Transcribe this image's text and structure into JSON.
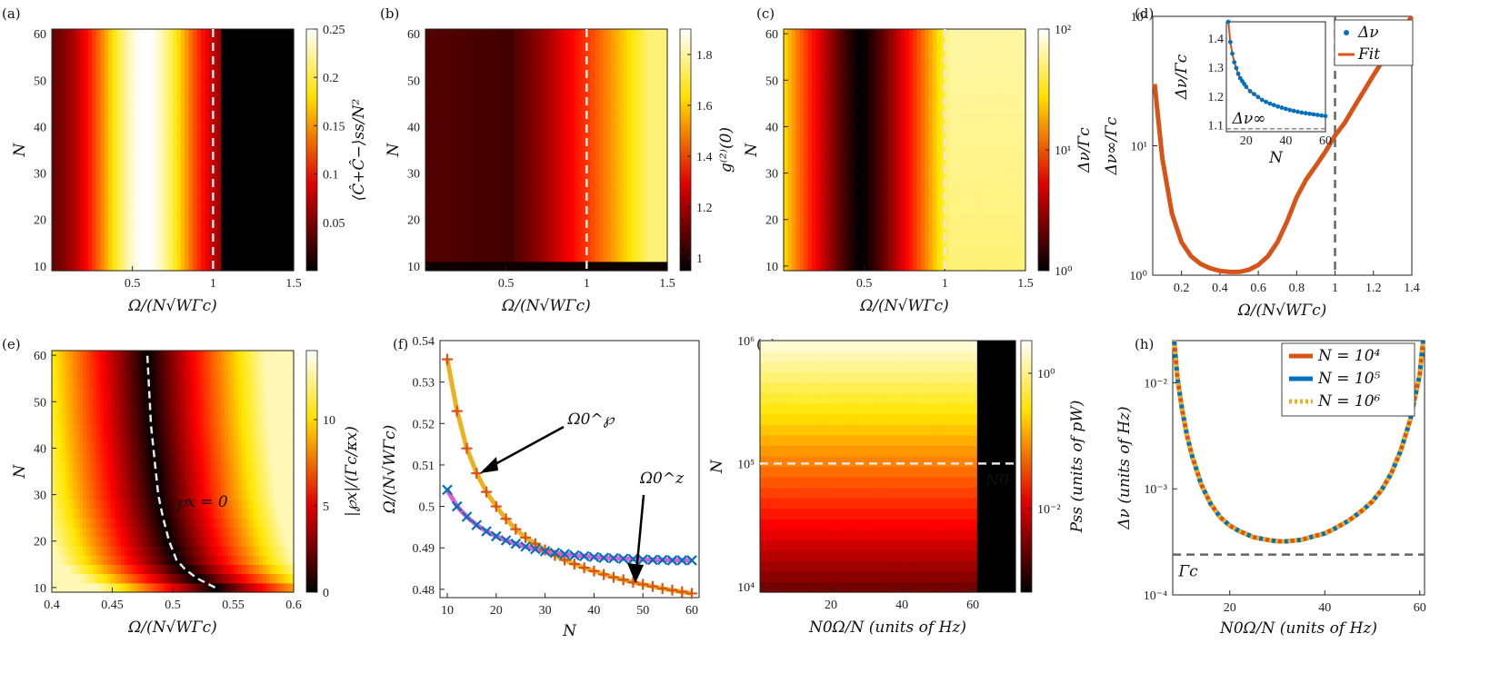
{
  "panel_labels": [
    "(a)",
    "(b)",
    "(c)",
    "(d)",
    "(e)",
    "(f)",
    "(g)",
    "(h)"
  ],
  "colors": {
    "orange": "#d95319",
    "blue": "#0072bd",
    "yellow": "#edb120",
    "magenta": "#e060d0",
    "dash_gray": "#666666",
    "dash_white": "#e8e8e8"
  },
  "chart_data": [
    {
      "id": "a",
      "type": "heatmap",
      "colormap": "hot",
      "xlabel": "Ω/(N√WΓc)",
      "ylabel": "N",
      "colorbar_label": "⟨Ĉ+Ĉ−⟩ss/N²",
      "xlim": [
        0,
        1.5
      ],
      "ylim": [
        9,
        61
      ],
      "xticks": [
        "0.5",
        "1",
        "1.5"
      ],
      "yticks": [
        "10",
        "20",
        "30",
        "40",
        "50",
        "60"
      ],
      "cbar_ticks": [
        "0.05",
        "0.1",
        "0.15",
        "0.2",
        "0.25"
      ],
      "cbar_range": [
        0,
        0.25
      ],
      "dashed_x": 1.0
    },
    {
      "id": "b",
      "type": "heatmap",
      "colormap": "hot",
      "xlabel": "Ω/(N√WΓc)",
      "ylabel": "N",
      "colorbar_label": "g⁽²⁾(0)",
      "xlim": [
        0,
        1.5
      ],
      "ylim": [
        9,
        61
      ],
      "xticks": [
        "0.5",
        "1",
        "1.5"
      ],
      "yticks": [
        "10",
        "20",
        "30",
        "40",
        "50",
        "60"
      ],
      "cbar_ticks": [
        "1",
        "1.2",
        "1.4",
        "1.6",
        "1.8"
      ],
      "cbar_range": [
        0.95,
        1.9
      ],
      "dashed_x": 1.0
    },
    {
      "id": "c",
      "type": "heatmap",
      "colormap": "hot",
      "cbar_scale": "log",
      "xlabel": "Ω/(N√WΓc)",
      "ylabel": "N",
      "colorbar_label": "Δν/Γc",
      "xlim": [
        0,
        1.5
      ],
      "ylim": [
        9,
        61
      ],
      "xticks": [
        "0.5",
        "1",
        "1.5"
      ],
      "yticks": [
        "10",
        "20",
        "30",
        "40",
        "50",
        "60"
      ],
      "cbar_ticks": [
        "10⁰",
        "10¹",
        "10²"
      ],
      "dashed_x": 1.0
    },
    {
      "id": "d",
      "type": "line",
      "yscale": "log",
      "xlabel": "Ω/(N√WΓc)",
      "ylabel": "Δν∞/Γc",
      "xlim": [
        0.05,
        1.4
      ],
      "ylim": [
        1,
        100
      ],
      "xticks": [
        "0.2",
        "0.4",
        "0.6",
        "0.8",
        "1",
        "1.2",
        "1.4"
      ],
      "yticks": [
        "10⁰",
        "10¹",
        "10²"
      ],
      "dashed_x": 1.0,
      "x": [
        0.06,
        0.1,
        0.15,
        0.2,
        0.25,
        0.3,
        0.35,
        0.4,
        0.45,
        0.5,
        0.55,
        0.6,
        0.65,
        0.7,
        0.75,
        0.8,
        0.85,
        0.9,
        0.95,
        1.0,
        1.05,
        1.1,
        1.2,
        1.3,
        1.4
      ],
      "y": [
        30,
        8,
        3,
        1.8,
        1.4,
        1.22,
        1.13,
        1.08,
        1.06,
        1.06,
        1.1,
        1.2,
        1.4,
        1.8,
        2.6,
        4,
        5.5,
        7,
        9,
        12,
        15,
        20,
        35,
        60,
        100
      ],
      "inset": {
        "xlabel": "N",
        "ylabel": "Δν/Γc",
        "xlim": [
          10,
          60
        ],
        "ylim": [
          1.08,
          1.46
        ],
        "xticks": [
          "20",
          "40",
          "60"
        ],
        "yticks": [
          "1.1",
          "1.2",
          "1.3",
          "1.4"
        ],
        "asymptote": 1.09,
        "asymptote_label": "Δν∞",
        "legend": [
          "Δν",
          "Fit"
        ],
        "N": [
          11,
          12,
          13,
          14,
          15,
          16,
          17,
          18,
          19,
          20,
          22,
          24,
          26,
          28,
          30,
          32,
          34,
          36,
          38,
          40,
          42,
          44,
          46,
          48,
          50,
          52,
          54,
          56,
          58,
          60
        ],
        "values": [
          1.46,
          1.39,
          1.35,
          1.32,
          1.3,
          1.28,
          1.265,
          1.255,
          1.245,
          1.235,
          1.22,
          1.21,
          1.2,
          1.19,
          1.183,
          1.177,
          1.172,
          1.167,
          1.163,
          1.159,
          1.155,
          1.152,
          1.149,
          1.146,
          1.144,
          1.142,
          1.14,
          1.138,
          1.136,
          1.134
        ]
      }
    },
    {
      "id": "e",
      "type": "heatmap",
      "colormap": "hot",
      "xlabel": "Ω/(N√WΓc)",
      "ylabel": "N",
      "colorbar_label": "|℘x|/(Γc/κx)",
      "xlim": [
        0.4,
        0.6
      ],
      "ylim": [
        9,
        61
      ],
      "xticks": [
        "0.4",
        "0.45",
        "0.5",
        "0.55",
        "0.6"
      ],
      "yticks": [
        "10",
        "20",
        "30",
        "40",
        "50",
        "60"
      ],
      "cbar_ticks": [
        "0",
        "5",
        "10"
      ],
      "cbar_range": [
        0,
        14
      ],
      "annotation": "℘x = 0",
      "zero_curve_N": [
        10,
        12,
        14,
        16,
        20,
        25,
        30,
        35,
        40,
        45,
        50,
        55,
        60
      ],
      "zero_curve_x": [
        0.535,
        0.52,
        0.51,
        0.503,
        0.497,
        0.492,
        0.488,
        0.486,
        0.484,
        0.482,
        0.481,
        0.48,
        0.479
      ]
    },
    {
      "id": "f",
      "type": "line",
      "xlabel": "N",
      "ylabel": "Ω/(N√WΓc)",
      "xlim": [
        10,
        60
      ],
      "ylim": [
        0.478,
        0.54
      ],
      "xticks": [
        "10",
        "20",
        "30",
        "40",
        "50",
        "60"
      ],
      "yticks": [
        "0.48",
        "0.49",
        "0.5",
        "0.51",
        "0.52",
        "0.53",
        "0.54"
      ],
      "annotations": [
        "Ω0^℘",
        "Ω0^z"
      ],
      "series": [
        {
          "name": "Ω0^℘",
          "N": [
            10,
            12,
            14,
            16,
            18,
            20,
            22,
            24,
            26,
            28,
            30,
            32,
            34,
            36,
            38,
            40,
            42,
            44,
            46,
            48,
            50,
            52,
            54,
            56,
            58,
            60
          ],
          "values": [
            0.5355,
            0.523,
            0.514,
            0.508,
            0.5035,
            0.5,
            0.497,
            0.4945,
            0.4925,
            0.491,
            0.4895,
            0.4882,
            0.4871,
            0.4861,
            0.4852,
            0.4844,
            0.4836,
            0.4829,
            0.4823,
            0.4817,
            0.4812,
            0.4807,
            0.4802,
            0.4798,
            0.4794,
            0.479
          ]
        },
        {
          "name": "Ω0^z",
          "N": [
            10,
            12,
            14,
            16,
            18,
            20,
            22,
            24,
            26,
            28,
            30,
            32,
            34,
            36,
            38,
            40,
            42,
            44,
            46,
            48,
            50,
            52,
            54,
            56,
            58,
            60
          ],
          "values": [
            0.504,
            0.5,
            0.4975,
            0.4955,
            0.494,
            0.4928,
            0.4918,
            0.491,
            0.4903,
            0.4897,
            0.4892,
            0.4888,
            0.4885,
            0.4882,
            0.488,
            0.4878,
            0.4876,
            0.4875,
            0.4874,
            0.4873,
            0.4872,
            0.4871,
            0.4871,
            0.487,
            0.487,
            0.487
          ]
        }
      ]
    },
    {
      "id": "g",
      "type": "heatmap",
      "colormap": "hot",
      "cbar_scale": "log",
      "xlabel": "N0Ω/N (units of Hz)",
      "ylabel": "N",
      "colorbar_label": "Pss (units of pW)",
      "xlim": [
        0,
        72
      ],
      "ylim": [
        9000,
        1000000
      ],
      "yscale": "log",
      "xticks": [
        "20",
        "40",
        "60"
      ],
      "yticks": [
        "10⁴",
        "10⁵",
        "10⁶"
      ],
      "cbar_ticks": [
        "10⁰",
        "10⁻²"
      ],
      "dashed_y": 100000,
      "dashed_y_label": "N0",
      "cutoff_x": 61
    },
    {
      "id": "h",
      "type": "line",
      "yscale": "log",
      "xlabel": "N0Ω/N (units of Hz)",
      "ylabel": "Δν (units of Hz)",
      "xlim": [
        8,
        61
      ],
      "ylim": [
        0.0001,
        0.025
      ],
      "xticks": [
        "20",
        "40",
        "60"
      ],
      "yticks": [
        "10⁻⁴",
        "10⁻³",
        "10⁻²"
      ],
      "asymptote": 0.00024,
      "asymptote_label": "Γc",
      "legend": [
        "N = 10⁴",
        "N = 10⁵",
        "N = 10⁶"
      ],
      "x": [
        8.3,
        9,
        10,
        11,
        12,
        14,
        16,
        18,
        20,
        22,
        25,
        28,
        30,
        32,
        35,
        38,
        40,
        42,
        45,
        48,
        50,
        52,
        54,
        56,
        58,
        60,
        60.7
      ],
      "y": [
        0.025,
        0.011,
        0.0055,
        0.0032,
        0.0021,
        0.0011,
        0.00072,
        0.00054,
        0.00045,
        0.0004,
        0.00035,
        0.00033,
        0.00032,
        0.00032,
        0.00033,
        0.00036,
        0.00038,
        0.00042,
        0.0005,
        0.00063,
        0.00076,
        0.00098,
        0.0014,
        0.0023,
        0.0045,
        0.012,
        0.025
      ]
    }
  ]
}
